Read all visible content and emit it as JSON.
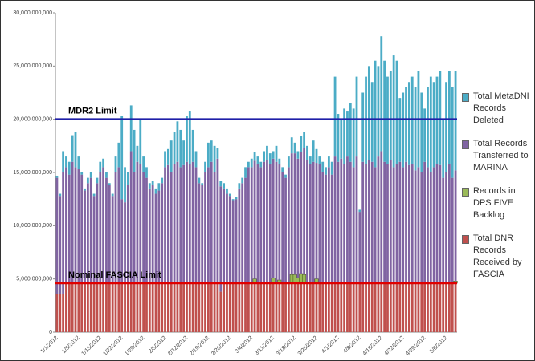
{
  "chart_data": {
    "type": "stacked_bar",
    "categories": [
      "1/1/2012",
      null,
      null,
      null,
      null,
      null,
      null,
      "1/8/2012",
      null,
      null,
      null,
      null,
      null,
      null,
      "1/15/2012",
      null,
      null,
      null,
      null,
      null,
      null,
      "1/22/2012",
      null,
      null,
      null,
      null,
      null,
      null,
      "1/29/2012",
      null,
      null,
      null,
      null,
      null,
      null,
      "2/5/2012",
      null,
      null,
      null,
      null,
      null,
      null,
      "2/12/2012",
      null,
      null,
      null,
      null,
      null,
      null,
      "2/19/2012",
      null,
      null,
      null,
      null,
      null,
      null,
      "2/26/2012",
      null,
      null,
      null,
      null,
      null,
      null,
      "3/4/2012",
      null,
      null,
      null,
      null,
      null,
      null,
      "3/11/2012",
      null,
      null,
      null,
      null,
      null,
      null,
      "3/18/2012",
      null,
      null,
      null,
      null,
      null,
      null,
      "3/25/2012",
      null,
      null,
      null,
      null,
      null,
      null,
      "4/1/2012",
      null,
      null,
      null,
      null,
      null,
      null,
      "4/8/2012",
      null,
      null,
      null,
      null,
      null,
      null,
      "4/15/2012",
      null,
      null,
      null,
      null,
      null,
      null,
      "4/22/2012",
      null,
      null,
      null,
      null,
      null,
      null,
      "4/29/2012",
      null,
      null,
      null,
      null,
      null,
      null,
      "5/6/2012",
      null,
      null,
      null
    ],
    "series": [
      {
        "name": "Total DNR Records Received by FASCIA",
        "color": "#c0504d",
        "values": [
          3600000000.0,
          3600000000.0,
          3600000000.0,
          4600000000.0,
          4600000000.0,
          4600000000.0,
          4600000000.0,
          4600000000.0,
          4600000000.0,
          4600000000.0,
          4600000000.0,
          4600000000.0,
          4600000000.0,
          4600000000.0,
          4600000000.0,
          4600000000.0,
          4600000000.0,
          4600000000.0,
          4600000000.0,
          4600000000.0,
          4600000000.0,
          4600000000.0,
          4600000000.0,
          4600000000.0,
          4600000000.0,
          4600000000.0,
          4600000000.0,
          4600000000.0,
          4600000000.0,
          4600000000.0,
          4600000000.0,
          4600000000.0,
          4600000000.0,
          4600000000.0,
          4600000000.0,
          4600000000.0,
          4600000000.0,
          4600000000.0,
          4600000000.0,
          4600000000.0,
          4600000000.0,
          4600000000.0,
          4600000000.0,
          4600000000.0,
          4600000000.0,
          4600000000.0,
          4600000000.0,
          4600000000.0,
          4600000000.0,
          4600000000.0,
          4600000000.0,
          4600000000.0,
          4600000000.0,
          3800000000.0,
          4600000000.0,
          4600000000.0,
          4600000000.0,
          4600000000.0,
          4600000000.0,
          4600000000.0,
          4600000000.0,
          4600000000.0,
          4600000000.0,
          4600000000.0,
          4600000000.0,
          4600000000.0,
          4600000000.0,
          4600000000.0,
          4600000000.0,
          4600000000.0,
          4600000000.0,
          4600000000.0,
          4600000000.0,
          4600000000.0,
          4600000000.0,
          4600000000.0,
          4600000000.0,
          4600000000.0,
          4600000000.0,
          4600000000.0,
          4600000000.0,
          4600000000.0,
          4600000000.0,
          4600000000.0,
          4600000000.0,
          4600000000.0,
          4600000000.0,
          4600000000.0,
          4600000000.0,
          4600000000.0,
          4600000000.0,
          4600000000.0,
          4600000000.0,
          4600000000.0,
          4600000000.0,
          4600000000.0,
          4600000000.0,
          4600000000.0,
          4600000000.0,
          4600000000.0,
          4600000000.0,
          4600000000.0,
          4600000000.0,
          4600000000.0,
          4600000000.0,
          4600000000.0,
          4600000000.0,
          4600000000.0,
          4600000000.0,
          4600000000.0,
          4600000000.0,
          4600000000.0,
          4600000000.0,
          4600000000.0,
          4600000000.0,
          4600000000.0,
          4600000000.0,
          4600000000.0,
          4600000000.0,
          4600000000.0,
          4600000000.0,
          4600000000.0,
          4600000000.0,
          4600000000.0,
          4600000000.0,
          4600000000.0,
          4600000000.0,
          4600000000.0,
          4600000000.0,
          4600000000.0
        ]
      },
      {
        "name": "Records in DPS FIVE Backlog",
        "color": "#9bbb59",
        "values": [
          null,
          null,
          null,
          null,
          null,
          null,
          null,
          null,
          null,
          null,
          null,
          null,
          null,
          null,
          null,
          null,
          null,
          null,
          null,
          null,
          null,
          null,
          null,
          null,
          null,
          null,
          null,
          null,
          null,
          null,
          null,
          null,
          null,
          null,
          null,
          null,
          null,
          null,
          null,
          null,
          null,
          null,
          null,
          null,
          null,
          null,
          null,
          null,
          null,
          null,
          null,
          null,
          null,
          null,
          null,
          null,
          null,
          null,
          null,
          null,
          null,
          null,
          null,
          null,
          400000000.0,
          null,
          null,
          null,
          null,
          null,
          500000000.0,
          null,
          300000000.0,
          null,
          null,
          null,
          800000000.0,
          800000000.0,
          500000000.0,
          900000000.0,
          800000000.0,
          null,
          null,
          null,
          400000000.0,
          null,
          null,
          null,
          null,
          null,
          null,
          null,
          null,
          null,
          null,
          null,
          null,
          null,
          null,
          null,
          null,
          null,
          null,
          null,
          null,
          null,
          null,
          null,
          null,
          null,
          null,
          null,
          null,
          null,
          null,
          null,
          null,
          null,
          null,
          null,
          null,
          null,
          null,
          null,
          null,
          null,
          null,
          null,
          null,
          200000000.0
        ]
      },
      {
        "name": "Total Records Transferred to MARINA",
        "color": "#8064a2",
        "values": [
          10900000000.0,
          9200000000.0,
          11400000000.0,
          10900000000.0,
          10200000000.0,
          11400000000.0,
          10900000000.0,
          10700000000.0,
          10200000000.0,
          8700000000.0,
          9400000000.0,
          9900000000.0,
          8200000000.0,
          9400000000.0,
          10400000000.0,
          10900000000.0,
          9900000000.0,
          9200000000.0,
          8200000000.0,
          10400000000.0,
          10900000000.0,
          7900000000.0,
          7600000000.0,
          9200000000.0,
          12400000000.0,
          10400000000.0,
          11400000000.0,
          11200000000.0,
          10400000000.0,
          9900000000.0,
          8900000000.0,
          9200000000.0,
          8400000000.0,
          8700000000.0,
          9400000000.0,
          10900000000.0,
          11100000000.0,
          10400000000.0,
          11200000000.0,
          11400000000.0,
          10900000000.0,
          11100000000.0,
          11400000000.0,
          11200000000.0,
          11400000000.0,
          10900000000.0,
          9400000000.0,
          9200000000.0,
          10400000000.0,
          10900000000.0,
          11400000000.0,
          10400000000.0,
          11700000000.0,
          9900000000.0,
          8900000000.0,
          8400000000.0,
          8200000000.0,
          7800000000.0,
          7900000000.0,
          8900000000.0,
          9400000000.0,
          9900000000.0,
          10900000000.0,
          10900000000.0,
          11100000000.0,
          11200000000.0,
          10900000000.0,
          11400000000.0,
          11600000000.0,
          11200000000.0,
          11200000000.0,
          11400000000.0,
          10900000000.0,
          10400000000.0,
          9900000000.0,
          10900000000.0,
          11400000000.0,
          11400000000.0,
          11200000000.0,
          11400000000.0,
          11900000000.0,
          11600000000.0,
          11200000000.0,
          11400000000.0,
          10900000000.0,
          11200000000.0,
          10400000000.0,
          10200000000.0,
          10900000000.0,
          10200000000.0,
          11900000000.0,
          11400000000.0,
          11700000000.0,
          11200000000.0,
          11900000000.0,
          11400000000.0,
          10900000000.0,
          11900000000.0,
          6700000000.0,
          11400000000.0,
          11200000000.0,
          11600000000.0,
          11400000000.0,
          10900000000.0,
          11900000000.0,
          12400000000.0,
          11400000000.0,
          11200000000.0,
          11600000000.0,
          10900000000.0,
          11200000000.0,
          11400000000.0,
          10900000000.0,
          11400000000.0,
          11100000000.0,
          11200000000.0,
          10600000000.0,
          10900000000.0,
          10400000000.0,
          11400000000.0,
          10900000000.0,
          10400000000.0,
          10900000000.0,
          11200000000.0,
          11100000000.0,
          9900000000.0,
          10400000000.0,
          11200000000.0,
          9900000000.0,
          10400000000.0
        ]
      },
      {
        "name": "Total MetaDNI Records Deleted",
        "color": "#4bacc6",
        "values": [
          200000000.0,
          200000000.0,
          2000000000.0,
          1000000000.0,
          1200000000.0,
          2500000000.0,
          3300000000.0,
          1200000000.0,
          200000000.0,
          200000000.0,
          500000000.0,
          500000000.0,
          200000000.0,
          500000000.0,
          1000000000.0,
          800000000.0,
          500000000.0,
          200000000.0,
          200000000.0,
          1500000000.0,
          2300000000.0,
          7800000000.0,
          3300000000.0,
          1200000000.0,
          4300000000.0,
          4000000000.0,
          1500000000.0,
          4200000000.0,
          1500000000.0,
          1000000000.0,
          500000000.0,
          400000000.0,
          500000000.0,
          700000000.0,
          500000000.0,
          1500000000.0,
          1500000000.0,
          3000000000.0,
          3000000000.0,
          3800000000.0,
          3500000000.0,
          2300000000.0,
          4300000000.0,
          5000000000.0,
          3000000000.0,
          1500000000.0,
          500000000.0,
          200000000.0,
          1000000000.0,
          2300000000.0,
          2000000000.0,
          2500000000.0,
          1000000000.0,
          500000000.0,
          500000000.0,
          500000000.0,
          200000000.0,
          100000000.0,
          200000000.0,
          500000000.0,
          500000000.0,
          1000000000.0,
          500000000.0,
          800000000.0,
          800000000.0,
          700000000.0,
          500000000.0,
          1000000000.0,
          1300000000.0,
          1000000000.0,
          700000000.0,
          1500000000.0,
          500000000.0,
          500000000.0,
          300000000.0,
          1000000000.0,
          1500000000.0,
          1000000000.0,
          700000000.0,
          1500000000.0,
          1500000000.0,
          1300000000.0,
          700000000.0,
          2000000000.0,
          1300000000.0,
          700000000.0,
          1000000000.0,
          700000000.0,
          1000000000.0,
          1200000000.0,
          7500000000.0,
          4500000000.0,
          3700000000.0,
          5200000000.0,
          4300000000.0,
          5500000000.0,
          5500000000.0,
          7500000000.0,
          200000000.0,
          6500000000.0,
          8200000000.0,
          8800000000.0,
          7500000000.0,
          10000000000.0,
          8500000000.0,
          10800000000.0,
          9500000000.0,
          8200000000.0,
          8300000000.0,
          10500000000.0,
          9700000000.0,
          6000000000.0,
          7000000000.0,
          7000000000.0,
          7800000000.0,
          8200000000.0,
          7800000000.0,
          9000000000.0,
          7500000000.0,
          5000000000.0,
          7500000000.0,
          9000000000.0,
          8000000000.0,
          8200000000.0,
          8800000000.0,
          5500000000.0,
          8500000000.0,
          8700000000.0,
          8500000000.0,
          9300000000.0
        ]
      }
    ],
    "ylim": [
      0,
      30000000000
    ],
    "yticks": [
      0,
      {
        "value": 5000000000,
        "label": "5,000,000,000"
      },
      {
        "value": 10000000000,
        "label": "10,000,000,000"
      },
      {
        "value": 15000000000,
        "label": "15,000,000,000"
      },
      {
        "value": 20000000000,
        "label": "20,000,000,000"
      },
      {
        "value": 25000000000,
        "label": "25,000,000,000"
      },
      {
        "value": 30000000000,
        "label": "30,000,000,000"
      }
    ],
    "grid": false,
    "legend": "right",
    "reference_lines": [
      {
        "label": "MDR2 Limit",
        "value": 20000000000,
        "color": "#1f1fa8"
      },
      {
        "label": "Nominal FASCIA Limit",
        "value": 4600000000,
        "color": "#e00000"
      }
    ]
  }
}
